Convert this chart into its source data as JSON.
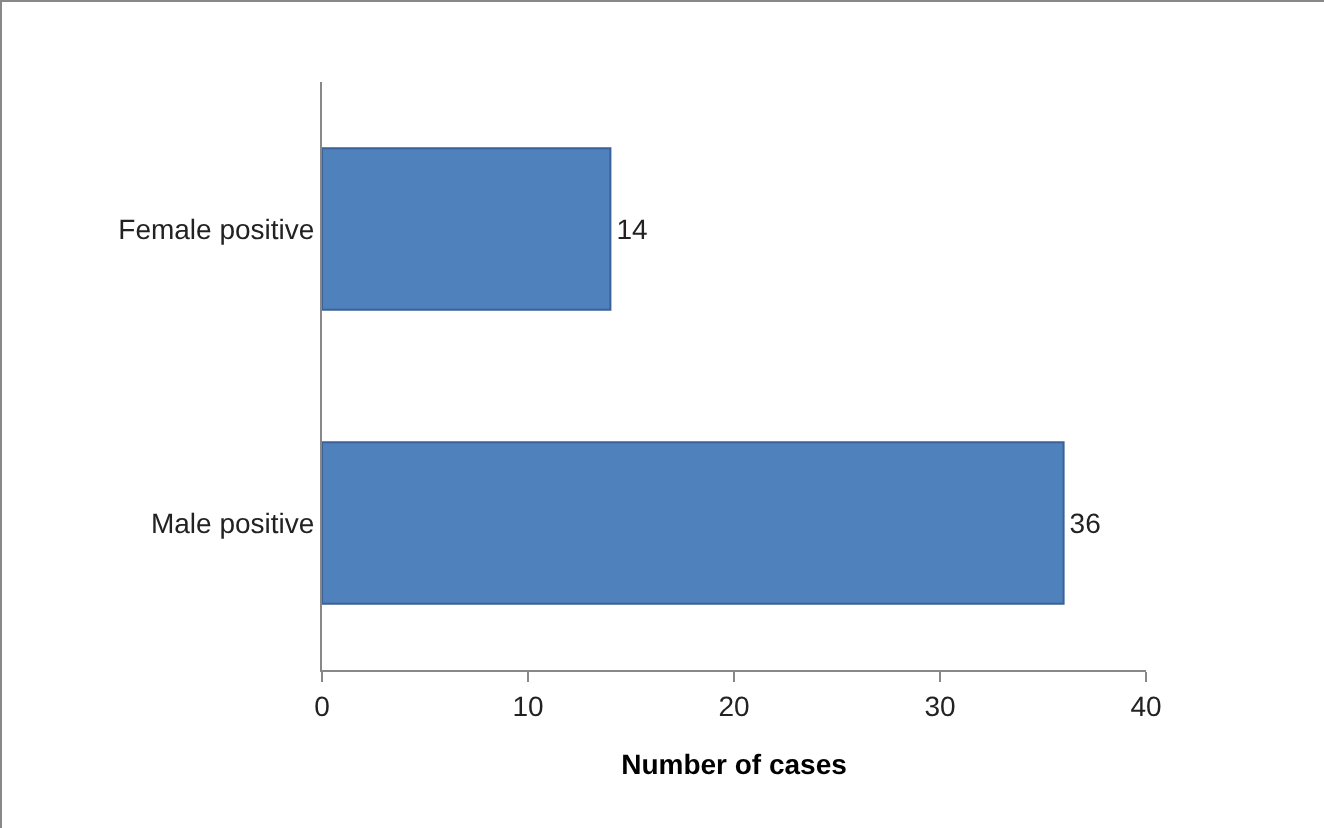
{
  "chart_data": {
    "type": "bar",
    "orientation": "horizontal",
    "categories": [
      "Female positive",
      "Male positive"
    ],
    "values": [
      14,
      36
    ],
    "color": "#4f81bd",
    "xlabel": "Number of cases",
    "xlim": [
      0,
      40
    ],
    "xticks": [
      0,
      10,
      20,
      30,
      40
    ],
    "data_labels": true
  }
}
